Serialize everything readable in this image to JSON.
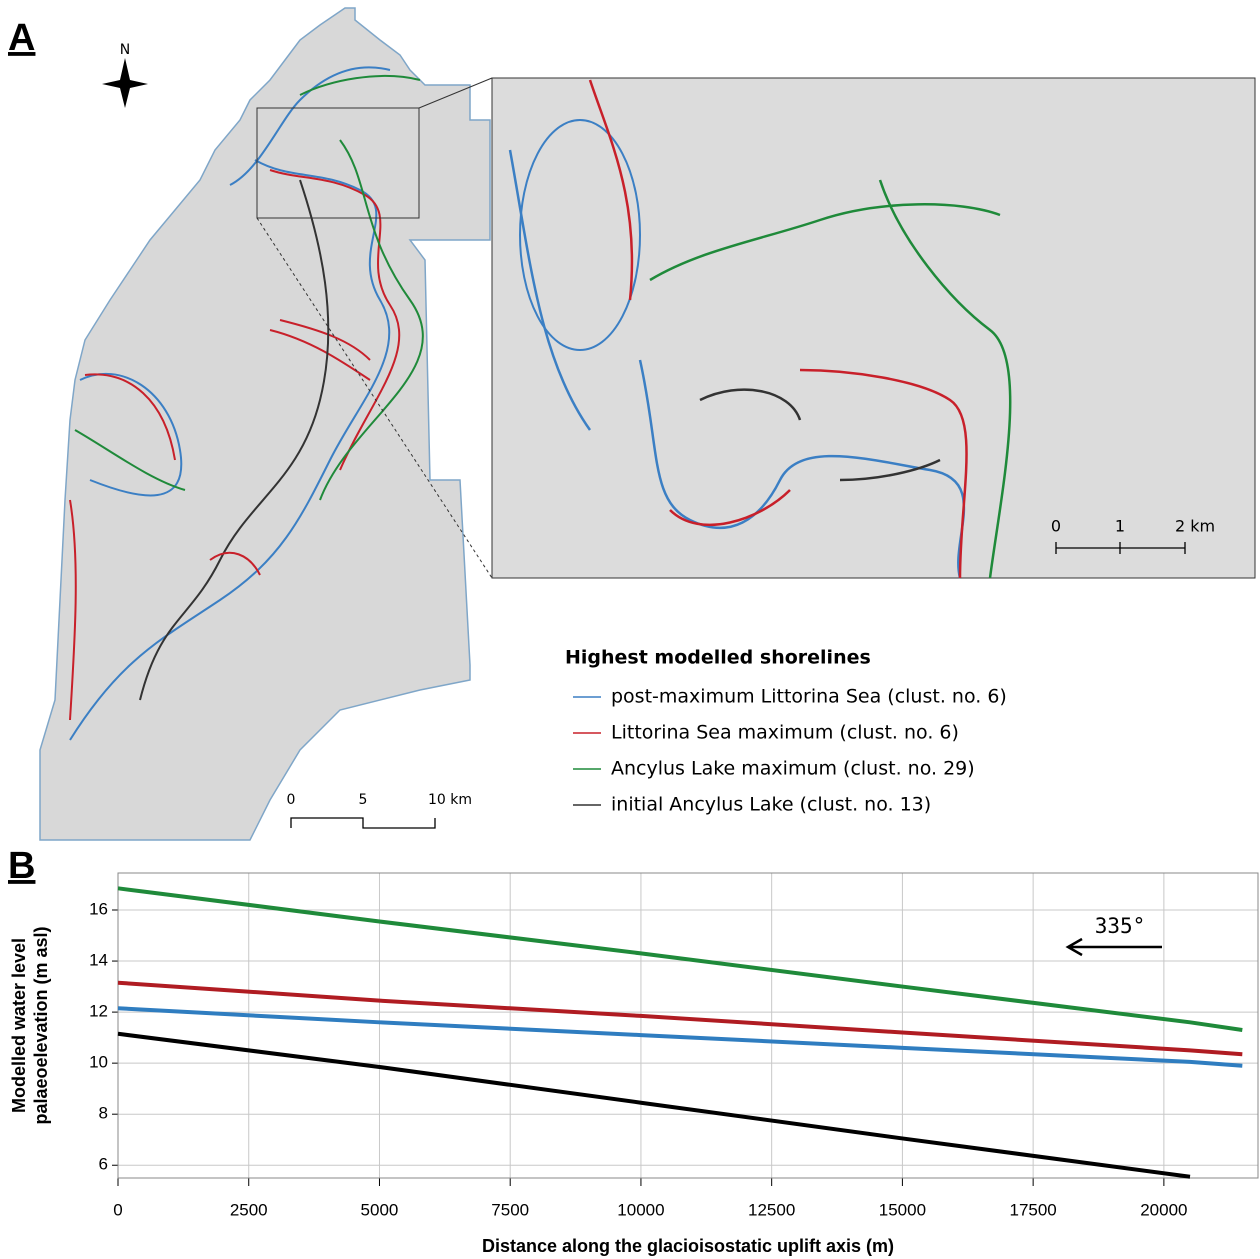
{
  "panel_a": {
    "label": "A",
    "north": "N",
    "legend": {
      "title": "Highest modelled shorelines",
      "items": [
        {
          "name": "post-maximum Littorina Sea (clust. no. 6)",
          "color": "#3b7fc4"
        },
        {
          "name": "Littorina Sea maximum (clust. no. 6)",
          "color": "#c8202a"
        },
        {
          "name": "Ancylus Lake maximum (clust. no. 29)",
          "color": "#1f8a3a"
        },
        {
          "name": "initial Ancylus Lake (clust. no. 13)",
          "color": "#333333"
        }
      ]
    },
    "scale_bar": [
      "0",
      "5",
      "10 km"
    ],
    "inset_scale_bar": [
      "0",
      "1",
      "2 km"
    ]
  },
  "chart_data": {
    "type": "line",
    "panel_label": "B",
    "xlabel": "Distance along the glacioisostatic uplift axis (m)",
    "ylabel": [
      "Modelled water level",
      "palaeoelevation (m asl)"
    ],
    "annotation": "335°",
    "x": [
      0,
      5000,
      10000,
      15000,
      20500,
      21500
    ],
    "series": [
      {
        "color": "#1f8a3a",
        "values": [
          16.85,
          15.55,
          14.3,
          13.0,
          11.6,
          11.3
        ]
      },
      {
        "color": "#b01c22",
        "values": [
          13.15,
          12.45,
          11.85,
          11.2,
          10.5,
          10.35
        ]
      },
      {
        "color": "#2f7dc0",
        "values": [
          12.15,
          11.6,
          11.1,
          10.6,
          10.05,
          9.9
        ]
      },
      {
        "color": "#000000",
        "values": [
          11.15,
          9.85,
          8.45,
          7.05,
          5.55,
          null
        ]
      }
    ],
    "xlim": [
      0,
      21800
    ],
    "ylim": [
      5.5,
      17.45
    ],
    "xticks": [
      0,
      2500,
      5000,
      7500,
      10000,
      12500,
      15000,
      17500,
      20000
    ],
    "yticks": [
      6,
      8,
      10,
      12,
      14,
      16
    ],
    "grid": true
  }
}
